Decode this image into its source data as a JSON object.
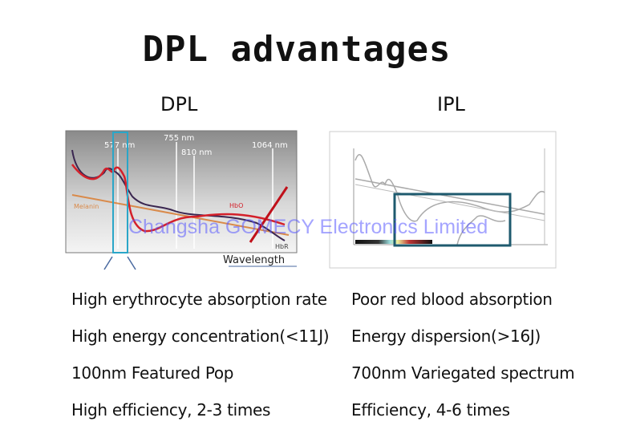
{
  "title": "DPL advantages",
  "columns": [
    {
      "heading": "DPL",
      "chart": {
        "wavelength_markers": [
          "577 nm",
          "755 nm",
          "810 nm",
          "1064 nm"
        ],
        "curve_labels": [
          "Melanin",
          "HbO",
          "HbR"
        ],
        "axis_label": "Wavelength",
        "highlight_color": "#2aa6c8"
      },
      "points": [
        "High erythrocyte absorption rate",
        "High energy concentration(<11J)",
        "100nm Featured Pop",
        "High efficiency, 2-3 times"
      ]
    },
    {
      "heading": "IPL",
      "chart": {
        "highlight_color": "#1e5a6e"
      },
      "points": [
        "Poor red blood absorption",
        "Energy dispersion(>16J)",
        "700nm Variegated spectrum",
        "Efficiency, 4-6 times"
      ]
    }
  ],
  "watermark": "Changsha GOMECY Electronics Limited"
}
